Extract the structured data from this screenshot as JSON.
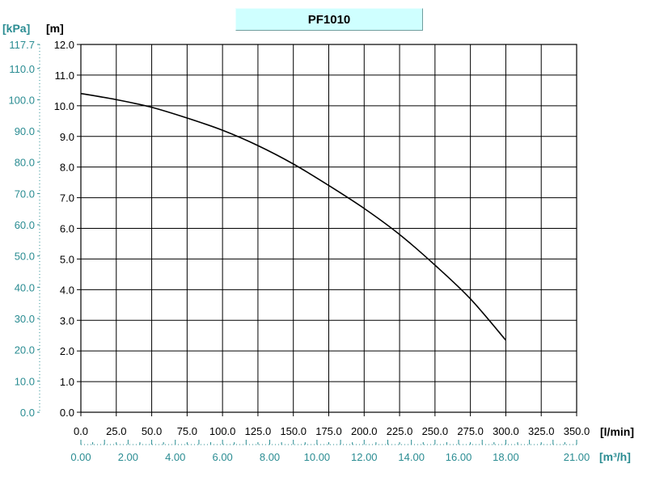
{
  "chart_data": {
    "type": "line",
    "title": "PF1010",
    "axes": {
      "x_primary": {
        "unit": "[l/min]",
        "range": [
          0,
          350
        ],
        "tick_labels": [
          "0.0",
          "25.0",
          "50.0",
          "75.0",
          "100.0",
          "125.0",
          "150.0",
          "175.0",
          "200.0",
          "225.0",
          "250.0",
          "275.0",
          "300.0",
          "325.0",
          "350.0"
        ]
      },
      "x_secondary": {
        "unit": "[m³/h]",
        "range": [
          0,
          21
        ],
        "tick_labels": [
          "0.00",
          "2.00",
          "4.00",
          "6.00",
          "8.00",
          "10.00",
          "12.00",
          "14.00",
          "16.00",
          "18.00",
          "21.00"
        ]
      },
      "y_primary": {
        "unit": "[m]",
        "range": [
          0,
          12
        ],
        "tick_labels": [
          "0.0",
          "1.0",
          "2.0",
          "3.0",
          "4.0",
          "5.0",
          "6.0",
          "7.0",
          "8.0",
          "9.0",
          "10.0",
          "11.0",
          "12.0"
        ]
      },
      "y_secondary": {
        "unit": "[kPa]",
        "range": [
          0,
          117.7
        ],
        "tick_labels": [
          "0.0",
          "10.0",
          "20.0",
          "30.0",
          "40.0",
          "50.0",
          "60.0",
          "70.0",
          "80.0",
          "90.0",
          "100.0",
          "110.0",
          "117.7"
        ]
      }
    },
    "grid": true,
    "legend": "none",
    "series": [
      {
        "x": [
          0,
          25,
          50,
          75,
          100,
          125,
          150,
          175,
          200,
          225,
          250,
          275,
          300
        ],
        "y": [
          10.4,
          10.2,
          9.95,
          9.6,
          9.2,
          8.7,
          8.1,
          7.4,
          6.65,
          5.8,
          4.8,
          3.7,
          2.35
        ]
      }
    ],
    "colors": {
      "curve": "#000000",
      "grid": "#000000",
      "primary_labels": "#000000",
      "secondary_labels": "#2a8c92",
      "title_background": "#cfffff"
    }
  }
}
